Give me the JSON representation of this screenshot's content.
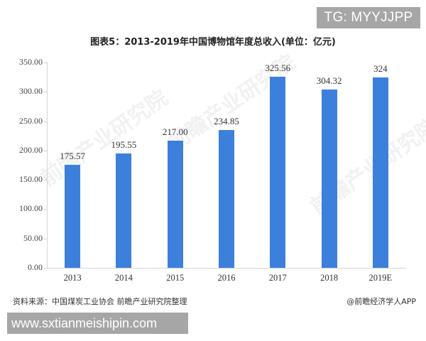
{
  "overlay": {
    "tg_badge": "TG: MYYJJPP",
    "url_badge": "www.sxtianmeishipin.com"
  },
  "footer": {
    "source": "资料来源：中国煤炭工业协会 前瞻产业研究院整理",
    "credit": "@前瞻经济学人APP"
  },
  "watermark": "前瞻产业研究院",
  "colors": {
    "bar": "#3c80dc",
    "axis": "#d4d4d4",
    "badge": "#a6a6a6"
  },
  "chart_data": {
    "type": "bar",
    "title": "图表5：2013-2019年中国博物馆年度总收入(单位：亿元)",
    "xlabel": "",
    "ylabel": "",
    "categories": [
      "2013",
      "2014",
      "2015",
      "2016",
      "2017",
      "2018",
      "2019E"
    ],
    "values": [
      175.57,
      195.55,
      217.0,
      234.85,
      325.56,
      304.32,
      324
    ],
    "value_labels": [
      "175.57",
      "195.55",
      "217.00",
      "234.85",
      "325.56",
      "304.32",
      "324"
    ],
    "ylim": [
      0,
      350
    ],
    "yticks": [
      "0.00",
      "50.00",
      "100.00",
      "150.00",
      "200.00",
      "250.00",
      "300.00",
      "350.00"
    ],
    "grid": false,
    "legend": null
  }
}
